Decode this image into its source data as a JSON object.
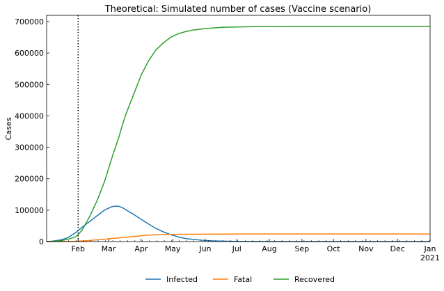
{
  "chart_data": {
    "type": "line",
    "title": "Theoretical: Simulated number of cases (Vaccine scenario)",
    "xlabel": "",
    "ylabel": "Cases",
    "x_ticks": [
      "Feb",
      "Mar",
      "Apr",
      "May",
      "Jun",
      "Jul",
      "Aug",
      "Sep",
      "Oct",
      "Nov",
      "Dec",
      "Jan"
    ],
    "x_tick_values": [
      31,
      60,
      91,
      121,
      152,
      182,
      213,
      244,
      274,
      305,
      335,
      366
    ],
    "x_year_label": "2021",
    "xlim": [
      1,
      366
    ],
    "ylim": [
      0,
      720000
    ],
    "y_ticks": [
      0,
      100000,
      200000,
      300000,
      400000,
      500000,
      600000,
      700000
    ],
    "vline": 31,
    "grid": false,
    "legend_position": "bottom-center",
    "x": [
      1,
      7,
      14,
      21,
      28,
      31,
      35,
      42,
      49,
      56,
      63,
      67,
      70,
      73,
      77,
      84,
      91,
      98,
      105,
      112,
      119,
      126,
      133,
      140,
      150,
      160,
      170,
      182,
      200,
      213,
      230,
      244,
      274,
      305,
      335,
      366
    ],
    "series": [
      {
        "name": "Infected",
        "color": "#1f77b4",
        "values": [
          0,
          1500,
          5000,
          12000,
          27000,
          35000,
          46000,
          64000,
          82000,
          100000,
          111000,
          113000,
          112000,
          108000,
          100000,
          86000,
          71000,
          56000,
          42000,
          31000,
          22000,
          15000,
          10000,
          7000,
          4000,
          2200,
          1300,
          600,
          200,
          100,
          50,
          20,
          0,
          0,
          0,
          0
        ]
      },
      {
        "name": "Fatal",
        "color": "#ff7f0e",
        "values": [
          0,
          50,
          150,
          400,
          900,
          1400,
          2000,
          3500,
          5500,
          7500,
          10000,
          11000,
          12000,
          13000,
          14000,
          16000,
          18500,
          20500,
          21500,
          22200,
          22700,
          23000,
          23200,
          23400,
          23600,
          23800,
          23900,
          24000,
          24100,
          24200,
          24200,
          24200,
          24200,
          24200,
          24200,
          24200
        ]
      },
      {
        "name": "Recovered",
        "color": "#2ca02c",
        "values": [
          0,
          800,
          2500,
          7000,
          14000,
          22000,
          38000,
          80000,
          130000,
          190000,
          265000,
          305000,
          335000,
          370000,
          410000,
          470000,
          530000,
          575000,
          610000,
          632000,
          650000,
          661000,
          668000,
          673000,
          677000,
          680000,
          682000,
          683000,
          684000,
          684300,
          684500,
          684600,
          684700,
          684700,
          684700,
          684700
        ]
      }
    ]
  }
}
